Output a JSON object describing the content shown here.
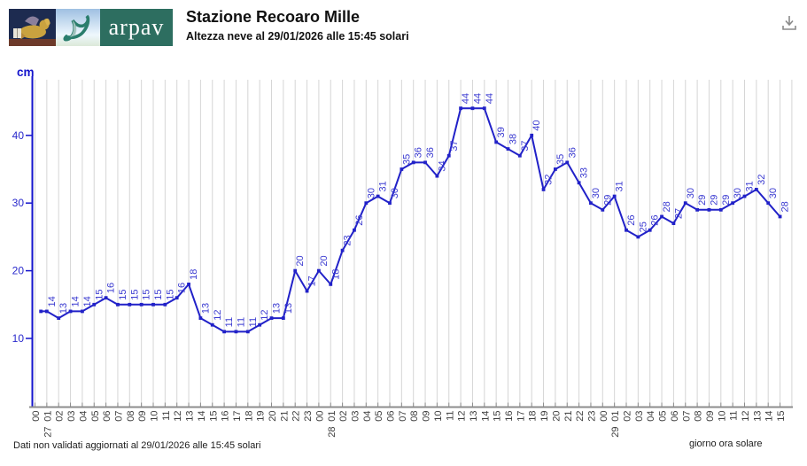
{
  "header": {
    "title": "Stazione Recoaro Mille",
    "subtitle": "Altezza neve al 29/01/2026 alle 15:45 solari",
    "logo_word": "arpav"
  },
  "footer": {
    "left": "Dati non validati aggiornati al 29/01/2026 alle 15:45 solari",
    "right": "giorno ora solare"
  },
  "colors": {
    "line": "#2121c8",
    "point_label": "#3a3ad0",
    "y_axis": "#1414cc",
    "y_label": "#2929cc",
    "x_axis": "#8c8c8c",
    "x_label": "#3d3d3d",
    "grid": "#d6d6d6",
    "arpav_green": "#2d6e60",
    "mark_teal": "#2a7d6c"
  },
  "chart_data": {
    "type": "line",
    "title": "Altezza neve al 29/01/2026 alle 15:45 solari",
    "unit_label": "cm",
    "xlabel": "giorno ora solare",
    "ylim": [
      0,
      48
    ],
    "yticks": [
      10,
      20,
      30,
      40
    ],
    "grid": "vertical-hourly",
    "legend": "none",
    "x_tick_hours": [
      "00",
      "01",
      "02",
      "03",
      "04",
      "05",
      "06",
      "07",
      "08",
      "09",
      "10",
      "11",
      "12",
      "13",
      "14",
      "15",
      "16",
      "17",
      "18",
      "19",
      "20",
      "21",
      "22",
      "23",
      "00",
      "01",
      "02",
      "03",
      "04",
      "05",
      "06",
      "07",
      "08",
      "09",
      "10",
      "11",
      "12",
      "13",
      "14",
      "15",
      "16",
      "17",
      "18",
      "19",
      "20",
      "21",
      "22",
      "23",
      "00",
      "01",
      "02",
      "03",
      "04",
      "05",
      "06",
      "07",
      "08",
      "09",
      "10",
      "11",
      "12",
      "13",
      "14",
      "15"
    ],
    "day_marks": [
      {
        "tick": 1,
        "text": "27"
      },
      {
        "tick": 25,
        "text": "28"
      },
      {
        "tick": 49,
        "text": "29"
      }
    ],
    "points_format": "[hours_since_27_01_00:00, value_cm, label_shown]",
    "points": [
      [
        0.5,
        14,
        ""
      ],
      [
        1,
        14,
        "14"
      ],
      [
        2,
        13,
        "13"
      ],
      [
        3,
        14,
        "14"
      ],
      [
        4,
        14,
        "14"
      ],
      [
        5,
        15,
        "15"
      ],
      [
        6,
        16,
        "16"
      ],
      [
        7,
        15,
        "15"
      ],
      [
        8,
        15,
        "15"
      ],
      [
        9,
        15,
        "15"
      ],
      [
        10,
        15,
        "15"
      ],
      [
        11,
        15,
        "15"
      ],
      [
        12,
        16,
        "16"
      ],
      [
        13,
        18,
        "18"
      ],
      [
        14,
        13,
        "13"
      ],
      [
        15,
        12,
        "12"
      ],
      [
        16,
        11,
        "11"
      ],
      [
        17,
        11,
        "11"
      ],
      [
        18,
        11,
        "11"
      ],
      [
        19,
        12,
        "12"
      ],
      [
        20,
        13,
        "13"
      ],
      [
        21,
        13,
        "13"
      ],
      [
        22,
        20,
        "20"
      ],
      [
        23,
        17,
        "17"
      ],
      [
        24,
        20,
        "20"
      ],
      [
        25,
        18,
        "18"
      ],
      [
        26,
        23,
        "23"
      ],
      [
        27,
        26,
        "26"
      ],
      [
        28,
        30,
        "30"
      ],
      [
        29,
        31,
        "31"
      ],
      [
        30,
        30,
        "30"
      ],
      [
        31,
        35,
        "35"
      ],
      [
        32,
        36,
        "36"
      ],
      [
        33,
        36,
        "36"
      ],
      [
        34,
        34,
        "34"
      ],
      [
        35,
        37,
        "37"
      ],
      [
        36,
        44,
        "44"
      ],
      [
        37,
        44,
        "44"
      ],
      [
        38,
        44,
        "44"
      ],
      [
        39,
        39,
        "39"
      ],
      [
        40,
        38,
        "38"
      ],
      [
        41,
        37,
        "37"
      ],
      [
        42,
        40,
        "40"
      ],
      [
        43,
        32,
        "32"
      ],
      [
        44,
        35,
        "35"
      ],
      [
        45,
        36,
        "36"
      ],
      [
        46,
        33,
        "33"
      ],
      [
        47,
        30,
        "30"
      ],
      [
        48,
        29,
        "29"
      ],
      [
        49,
        31,
        "31"
      ],
      [
        50,
        26,
        "26"
      ],
      [
        51,
        25,
        "25"
      ],
      [
        52,
        26,
        "26"
      ],
      [
        53,
        28,
        "28"
      ],
      [
        54,
        27,
        "27"
      ],
      [
        55,
        30,
        "30"
      ],
      [
        56,
        29,
        "29"
      ],
      [
        57,
        29,
        "29"
      ],
      [
        58,
        29,
        "29"
      ],
      [
        59,
        30,
        "30"
      ],
      [
        60,
        31,
        "31"
      ],
      [
        61,
        32,
        "32"
      ],
      [
        62,
        30,
        "30"
      ],
      [
        63,
        28,
        "28"
      ]
    ]
  }
}
